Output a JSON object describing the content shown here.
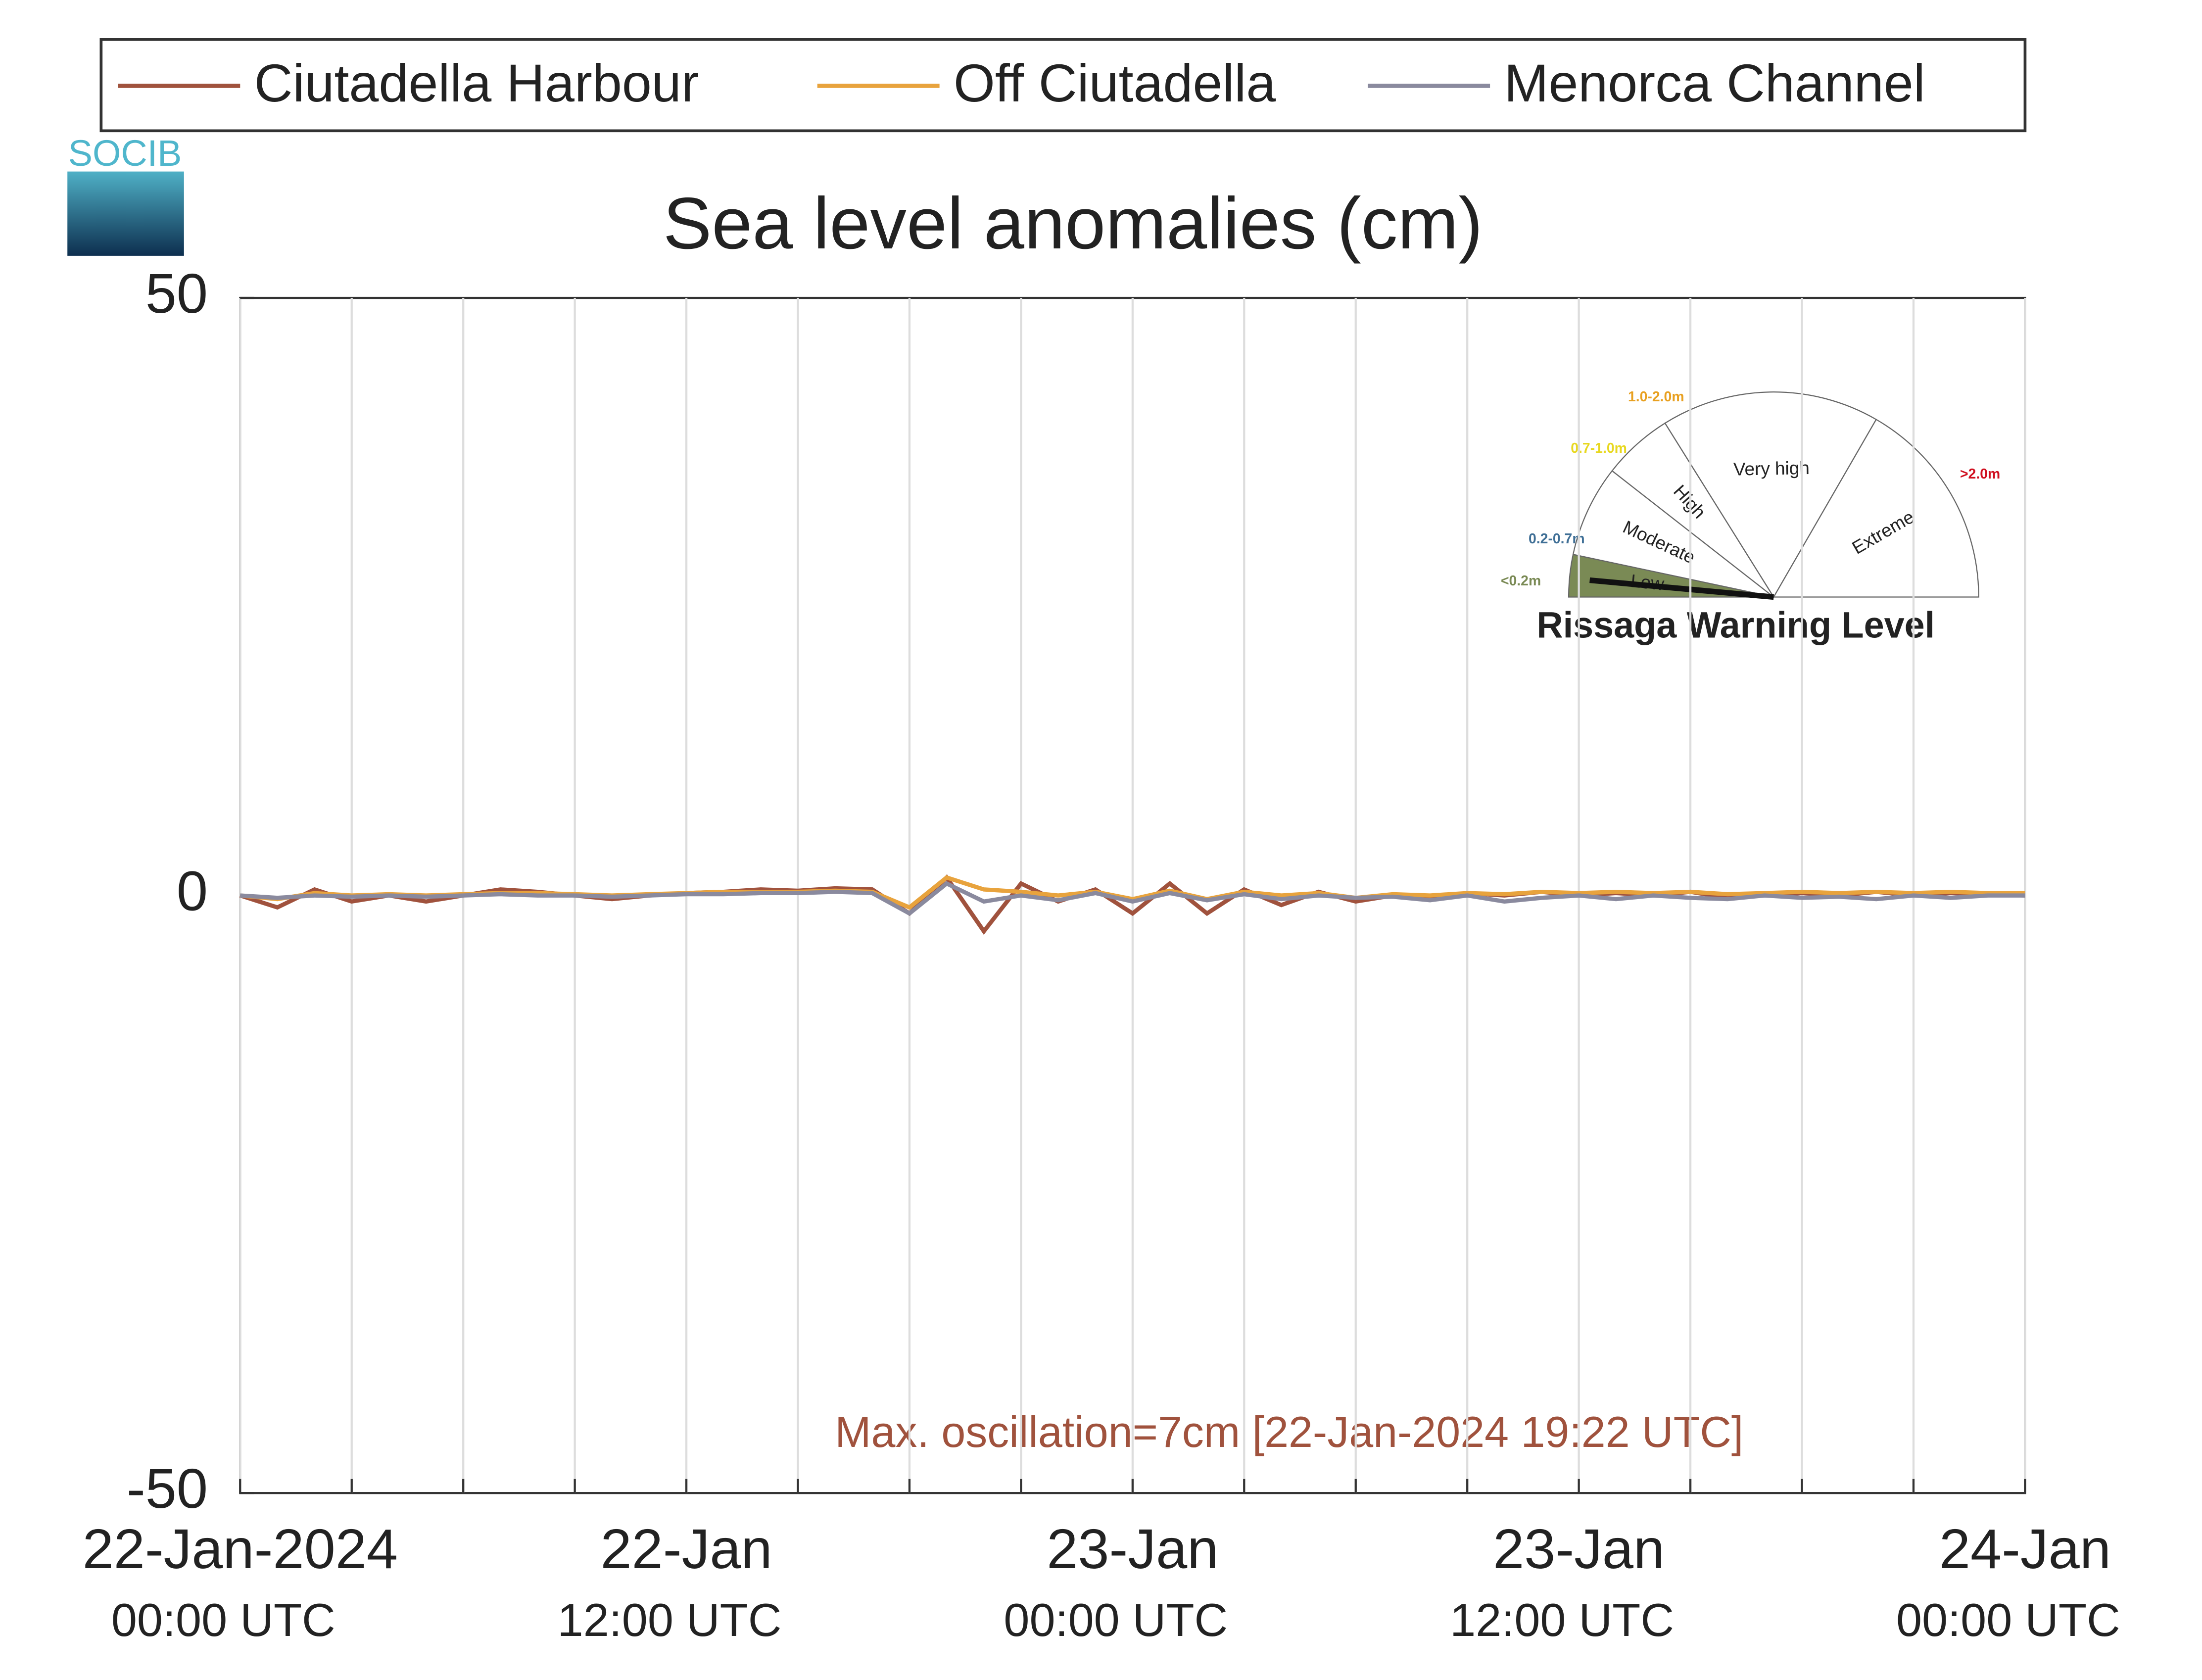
{
  "chart_data": {
    "type": "line",
    "title": "Sea level anomalies (cm)",
    "logo": "SOCIB",
    "annotation": "Max. oscillation=7cm [22-Jan-2024 19:22 UTC]",
    "x": [
      "2024-01-22T00:00",
      "2024-01-22T01:00",
      "2024-01-22T02:00",
      "2024-01-22T03:00",
      "2024-01-22T04:00",
      "2024-01-22T05:00",
      "2024-01-22T06:00",
      "2024-01-22T07:00",
      "2024-01-22T08:00",
      "2024-01-22T09:00",
      "2024-01-22T10:00",
      "2024-01-22T11:00",
      "2024-01-22T12:00",
      "2024-01-22T13:00",
      "2024-01-22T14:00",
      "2024-01-22T15:00",
      "2024-01-22T16:00",
      "2024-01-22T17:00",
      "2024-01-22T18:00",
      "2024-01-22T19:00",
      "2024-01-22T20:00",
      "2024-01-22T21:00",
      "2024-01-22T22:00",
      "2024-01-22T23:00",
      "2024-01-23T00:00",
      "2024-01-23T01:00",
      "2024-01-23T02:00",
      "2024-01-23T03:00",
      "2024-01-23T04:00",
      "2024-01-23T05:00",
      "2024-01-23T06:00",
      "2024-01-23T07:00",
      "2024-01-23T08:00",
      "2024-01-23T09:00",
      "2024-01-23T10:00",
      "2024-01-23T11:00",
      "2024-01-23T12:00",
      "2024-01-23T13:00",
      "2024-01-23T14:00",
      "2024-01-23T15:00",
      "2024-01-23T16:00",
      "2024-01-23T17:00",
      "2024-01-23T18:00",
      "2024-01-23T19:00",
      "2024-01-23T20:00",
      "2024-01-23T21:00",
      "2024-01-23T22:00",
      "2024-01-23T23:00",
      "2024-01-24T00:00"
    ],
    "series": [
      {
        "name": "Ciutadella Harbour",
        "color": "#a0523d",
        "values": [
          0,
          -1,
          0.5,
          -0.5,
          0,
          -0.5,
          0,
          0.5,
          0.3,
          0,
          -0.3,
          0,
          0.2,
          0.3,
          0.5,
          0.4,
          0.6,
          0.5,
          -1.5,
          1.5,
          -3,
          1,
          -0.5,
          0.5,
          -1.5,
          1,
          -1.5,
          0.5,
          -0.8,
          0.3,
          -0.5,
          0,
          -0.3,
          0.2,
          0,
          0.3,
          0,
          0.2,
          0,
          0.3,
          -0.2,
          0,
          0.2,
          0,
          0.3,
          0,
          0.2,
          0.1,
          0
        ]
      },
      {
        "name": "Off Ciutadella",
        "color": "#e8a33d",
        "values": [
          0,
          -0.3,
          0.2,
          0,
          0.1,
          0,
          0.1,
          0.2,
          0.2,
          0.1,
          0,
          0.1,
          0.2,
          0.3,
          0.3,
          0.3,
          0.4,
          0.3,
          -1,
          1.5,
          0.5,
          0.3,
          0,
          0.3,
          -0.3,
          0.4,
          -0.3,
          0.3,
          0,
          0.2,
          -0.2,
          0.1,
          0,
          0.2,
          0.1,
          0.3,
          0.2,
          0.3,
          0.2,
          0.3,
          0.1,
          0.2,
          0.3,
          0.2,
          0.3,
          0.2,
          0.3,
          0.2,
          0.2
        ]
      },
      {
        "name": "Menorca Channel",
        "color": "#8a8a9e",
        "values": [
          0,
          -0.2,
          0,
          -0.1,
          0,
          -0.1,
          0,
          0.1,
          0,
          0,
          -0.1,
          0,
          0.1,
          0.1,
          0.2,
          0.2,
          0.3,
          0.2,
          -1.5,
          1,
          -0.5,
          0,
          -0.4,
          0.2,
          -0.5,
          0.2,
          -0.4,
          0.1,
          -0.3,
          0,
          -0.2,
          -0.1,
          -0.4,
          0,
          -0.5,
          -0.2,
          0,
          -0.3,
          0,
          -0.2,
          -0.3,
          0,
          -0.2,
          -0.1,
          -0.3,
          0,
          -0.2,
          0,
          0
        ]
      }
    ],
    "xlim": [
      "2024-01-22T00:00",
      "2024-01-24T00:00"
    ],
    "xticks": [
      {
        "value": "2024-01-22T00:00",
        "label": [
          "22-Jan-2024",
          "00:00 UTC"
        ]
      },
      {
        "value": "2024-01-22T03:00",
        "label": null
      },
      {
        "value": "2024-01-22T06:00",
        "label": null
      },
      {
        "value": "2024-01-22T09:00",
        "label": null
      },
      {
        "value": "2024-01-22T12:00",
        "label": [
          "22-Jan",
          "12:00 UTC"
        ]
      },
      {
        "value": "2024-01-22T15:00",
        "label": null
      },
      {
        "value": "2024-01-22T18:00",
        "label": null
      },
      {
        "value": "2024-01-22T21:00",
        "label": null
      },
      {
        "value": "2024-01-23T00:00",
        "label": [
          "23-Jan",
          "00:00 UTC"
        ]
      },
      {
        "value": "2024-01-23T03:00",
        "label": null
      },
      {
        "value": "2024-01-23T06:00",
        "label": null
      },
      {
        "value": "2024-01-23T09:00",
        "label": null
      },
      {
        "value": "2024-01-23T12:00",
        "label": [
          "23-Jan",
          "12:00 UTC"
        ]
      },
      {
        "value": "2024-01-23T15:00",
        "label": null
      },
      {
        "value": "2024-01-23T18:00",
        "label": null
      },
      {
        "value": "2024-01-23T21:00",
        "label": null
      },
      {
        "value": "2024-01-24T00:00",
        "label": [
          "24-Jan",
          "00:00 UTC"
        ]
      }
    ],
    "ylim": [
      -50,
      50
    ],
    "yticks": [
      -50,
      0,
      50
    ],
    "grid": true,
    "rissaga_gauge": {
      "title": "Rissaga Warning Level",
      "levels": [
        {
          "name": "Low",
          "range": "<0.2m",
          "color": "#7a8a55"
        },
        {
          "name": "Moderate",
          "range": "0.2-0.7m",
          "color": "#3f6f96"
        },
        {
          "name": "High",
          "range": "0.7-1.0m",
          "color": "#e8d820"
        },
        {
          "name": "Very high",
          "range": "1.0-2.0m",
          "color": "#e8a020"
        },
        {
          "name": "Extreme",
          "range": ">2.0m",
          "color": "#d01020"
        }
      ]
    }
  }
}
